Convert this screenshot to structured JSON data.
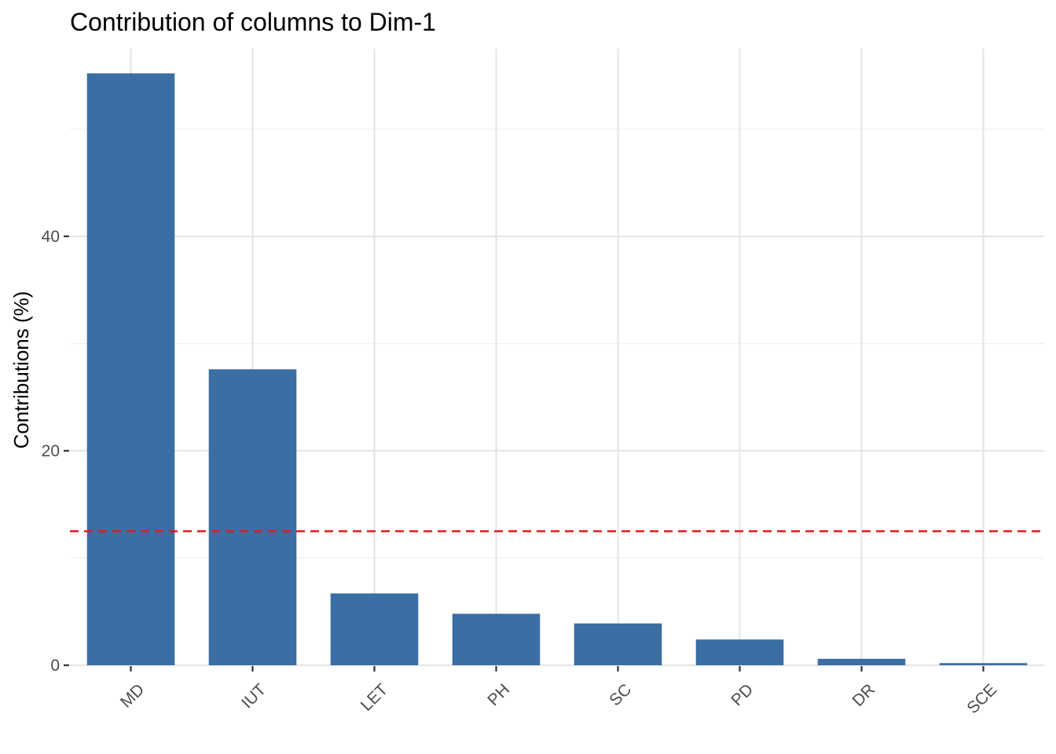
{
  "chart_data": {
    "type": "bar",
    "title": "Contribution of columns to Dim-1",
    "xlabel": "",
    "ylabel": "Contributions (%)",
    "categories": [
      "MD",
      "IUT",
      "LET",
      "PH",
      "SC",
      "PD",
      "DR",
      "SCE"
    ],
    "values": [
      55.2,
      27.6,
      6.7,
      4.8,
      3.9,
      2.4,
      0.6,
      0.2
    ],
    "reference_line": 12.5,
    "ylim": [
      0,
      57.5
    ],
    "y_ticks": [
      0,
      20,
      40
    ],
    "y_tick_labels": [
      "0",
      "20",
      "40"
    ],
    "grid": true,
    "legend": "none",
    "x_tick_rotation_deg": -45,
    "colors": {
      "bar": "#3A6EA5",
      "reference_line": "#E41A1C",
      "grid_major": "#E5E5E5",
      "grid_minor": "#F0F0F0"
    }
  }
}
